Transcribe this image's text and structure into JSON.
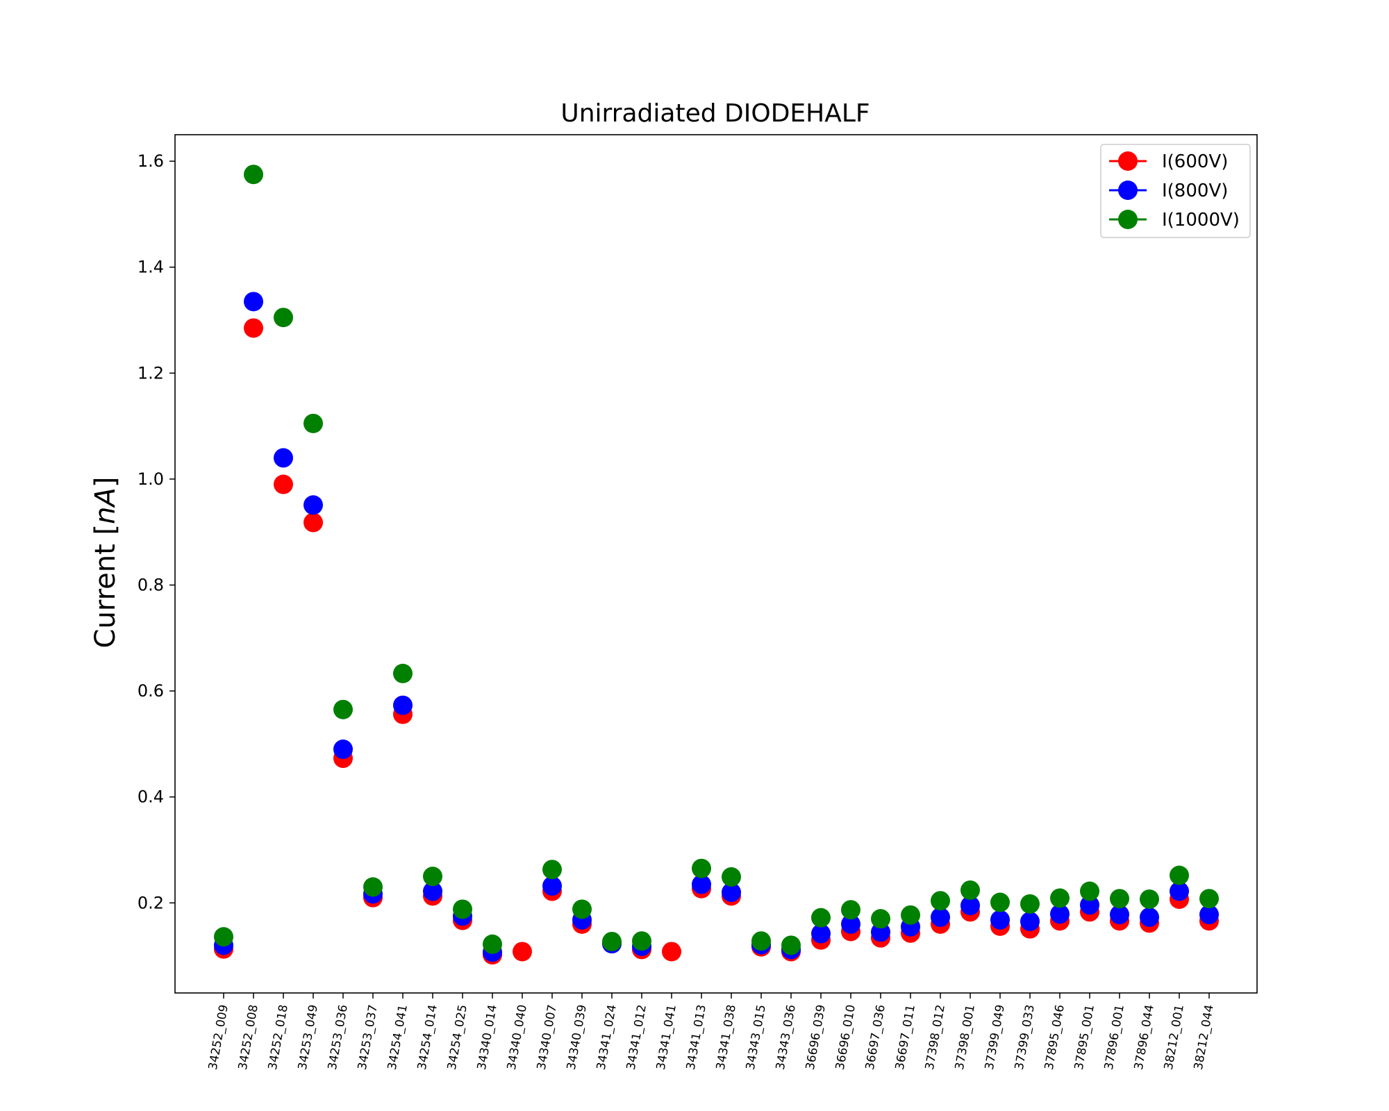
{
  "chart_data": {
    "type": "scatter",
    "title": "Unirradiated DIODEHALF",
    "xlabel": "",
    "ylabel": "Current [",
    "ylabel_unit": "nA",
    "ylabel_close": "]",
    "ylim": [
      0.03,
      1.65
    ],
    "yticks": [
      0.2,
      0.4,
      0.6,
      0.8,
      1.0,
      1.2,
      1.4,
      1.6
    ],
    "ytick_labels": [
      "0.2",
      "0.4",
      "0.6",
      "0.8",
      "1.0",
      "1.2",
      "1.4",
      "1.6"
    ],
    "grid": false,
    "legend_position": "top-right",
    "categories": [
      "34252_009",
      "34252_008",
      "34252_018",
      "34253_049",
      "34253_036",
      "34253_037",
      "34254_041",
      "34254_014",
      "34254_025",
      "34340_014",
      "34340_040",
      "34340_007",
      "34340_039",
      "34341_024",
      "34341_012",
      "34341_041",
      "34341_013",
      "34341_038",
      "34343_015",
      "34343_036",
      "36696_039",
      "36696_010",
      "36697_036",
      "36697_011",
      "37398_012",
      "37398_001",
      "37399_049",
      "37399_033",
      "37895_046",
      "37895_001",
      "37896_001",
      "37896_044",
      "38212_001",
      "38212_044"
    ],
    "series": [
      {
        "name": "I(600V)",
        "color": "#ff0000",
        "values": [
          0.113,
          1.285,
          0.99,
          0.918,
          0.473,
          0.21,
          0.556,
          0.213,
          0.167,
          0.102,
          0.108,
          0.222,
          0.16,
          0.123,
          0.112,
          0.108,
          0.227,
          0.213,
          0.117,
          0.108,
          0.13,
          0.146,
          0.134,
          0.143,
          0.16,
          0.183,
          0.156,
          0.151,
          0.166,
          0.183,
          0.166,
          0.162,
          0.207,
          0.166
        ]
      },
      {
        "name": "I(800V)",
        "color": "#0000ff",
        "values": [
          0.12,
          1.335,
          1.04,
          0.951,
          0.49,
          0.217,
          0.573,
          0.222,
          0.175,
          0.107,
          null,
          0.232,
          0.168,
          0.123,
          0.118,
          null,
          0.235,
          0.22,
          0.121,
          0.112,
          0.142,
          0.16,
          0.145,
          0.155,
          0.173,
          0.195,
          0.168,
          0.165,
          0.179,
          0.196,
          0.178,
          0.173,
          0.222,
          0.178
        ]
      },
      {
        "name": "I(1000V)",
        "color": "#008000",
        "values": [
          0.136,
          1.575,
          1.305,
          1.105,
          0.565,
          0.23,
          0.633,
          0.25,
          0.188,
          0.122,
          null,
          0.263,
          0.188,
          0.127,
          0.128,
          null,
          0.265,
          0.249,
          0.128,
          0.12,
          0.172,
          0.187,
          0.17,
          0.177,
          0.204,
          0.224,
          0.201,
          0.198,
          0.209,
          0.222,
          0.208,
          0.207,
          0.252,
          0.208
        ]
      }
    ]
  }
}
